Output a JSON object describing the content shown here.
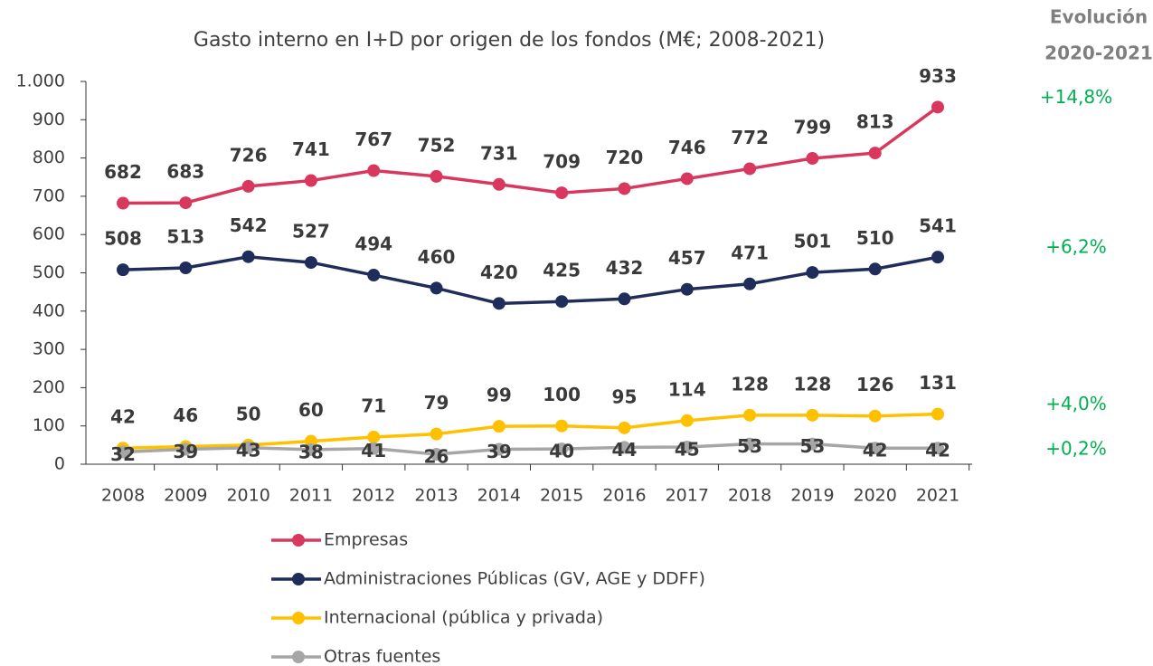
{
  "chart_data": {
    "type": "line",
    "title": "Gasto interno en I+D por origen de los fondos (M€; 2008-2021)",
    "categories": [
      "2008",
      "2009",
      "2010",
      "2011",
      "2012",
      "2013",
      "2014",
      "2015",
      "2016",
      "2017",
      "2018",
      "2019",
      "2020",
      "2021"
    ],
    "series": [
      {
        "name": "Empresas",
        "color": "#d9385e",
        "values": [
          682,
          683,
          726,
          741,
          767,
          752,
          731,
          709,
          720,
          746,
          772,
          799,
          813,
          933
        ]
      },
      {
        "name": "Administraciones Públicas (GV, AGE y DDFF)",
        "color": "#1f2d5a",
        "values": [
          508,
          513,
          542,
          527,
          494,
          460,
          420,
          425,
          432,
          457,
          471,
          501,
          510,
          541
        ]
      },
      {
        "name": "Internacional (pública y privada)",
        "color": "#ffc000",
        "values": [
          42,
          46,
          50,
          60,
          71,
          79,
          99,
          100,
          95,
          114,
          128,
          128,
          126,
          131
        ]
      },
      {
        "name": "Otras fuentes",
        "color": "#a6a6a6",
        "values": [
          32,
          39,
          43,
          38,
          41,
          26,
          39,
          40,
          44,
          45,
          53,
          53,
          42,
          42
        ]
      }
    ],
    "ylim": [
      0,
      1000
    ],
    "yticks": [
      0,
      100,
      200,
      300,
      400,
      500,
      600,
      700,
      800,
      900,
      {
        "value": 1000,
        "label": "1.000"
      }
    ],
    "annotation_header": [
      "Evolución",
      "2020-2021"
    ],
    "annotations": [
      "+14,8%",
      "+6,2%",
      "+4,0%",
      "+0,2%"
    ],
    "annotation_color": "#00b050"
  }
}
